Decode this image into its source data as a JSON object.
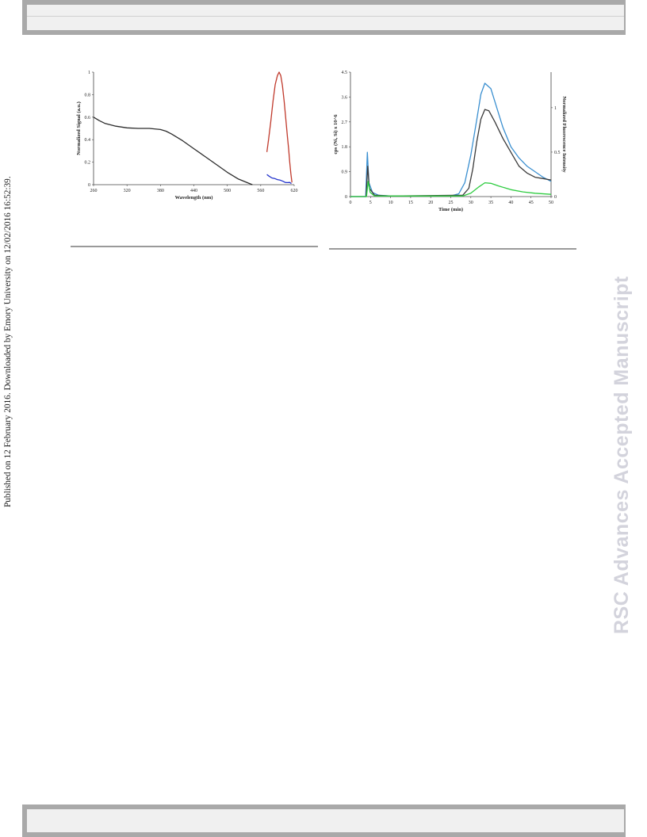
{
  "published_note": "Published on 12 February 2016. Downloaded by Emory University on 12/02/2016 16:52:39.",
  "watermark": "RSC Advances Accepted Manuscript",
  "chart_data": [
    {
      "type": "line",
      "title": "",
      "xlabel": "Wavelength (nm)",
      "ylabel": "Normalized Signal (a.u.)",
      "xlim": [
        260,
        620
      ],
      "ylim": [
        0,
        1
      ],
      "x_ticks": [
        "260",
        "320",
        "380",
        "440",
        "500",
        "560",
        "620"
      ],
      "y_ticks": [
        "0",
        "0.2",
        "0.4",
        "0.6",
        "0.8",
        "1"
      ],
      "grid": false,
      "legend": "none",
      "series": [
        {
          "color": "#2b2b2b",
          "points": [
            [
              260,
              0.6
            ],
            [
              270,
              0.57
            ],
            [
              280,
              0.545
            ],
            [
              300,
              0.52
            ],
            [
              320,
              0.505
            ],
            [
              340,
              0.5
            ],
            [
              360,
              0.5
            ],
            [
              380,
              0.49
            ],
            [
              390,
              0.475
            ],
            [
              400,
              0.45
            ],
            [
              420,
              0.39
            ],
            [
              440,
              0.32
            ],
            [
              460,
              0.25
            ],
            [
              480,
              0.18
            ],
            [
              500,
              0.11
            ],
            [
              520,
              0.05
            ],
            [
              540,
              0.01
            ],
            [
              545,
              0
            ]
          ]
        },
        {
          "color": "#c0392b",
          "points": [
            [
              571,
              0.29
            ],
            [
              574,
              0.4
            ],
            [
              578,
              0.56
            ],
            [
              582,
              0.74
            ],
            [
              586,
              0.89
            ],
            [
              590,
              0.97
            ],
            [
              593,
              1.0
            ],
            [
              596,
              0.97
            ],
            [
              599,
              0.88
            ],
            [
              602,
              0.74
            ],
            [
              605,
              0.58
            ],
            [
              608,
              0.42
            ],
            [
              610,
              0.32
            ],
            [
              612,
              0.2
            ],
            [
              614,
              0.1
            ],
            [
              616,
              0.02
            ]
          ]
        },
        {
          "color": "#2233cc",
          "points": [
            [
              571,
              0.09
            ],
            [
              575,
              0.075
            ],
            [
              580,
              0.06
            ],
            [
              585,
              0.055
            ],
            [
              590,
              0.045
            ],
            [
              595,
              0.04
            ],
            [
              600,
              0.03
            ],
            [
              604,
              0.02
            ],
            [
              608,
              0.018
            ],
            [
              612,
              0.02
            ],
            [
              615,
              0.01
            ]
          ]
        }
      ]
    },
    {
      "type": "line",
      "title": "",
      "xlabel": "Time (min)",
      "ylabel": "cps (Ni, Si) x 10^6",
      "y2label": "Normalized Fluorescence Intensity",
      "xlim": [
        0,
        50
      ],
      "ylim": [
        0,
        4.5
      ],
      "y2lim": [
        0,
        1.4
      ],
      "x_ticks": [
        "0",
        "5",
        "10",
        "15",
        "20",
        "25",
        "30",
        "35",
        "40",
        "45",
        "50"
      ],
      "y_ticks": [
        "0",
        "0.9",
        "1.8",
        "2.7",
        "3.6",
        "4.5"
      ],
      "y2_ticks": [
        "0",
        "0.5",
        "1"
      ],
      "grid": false,
      "legend": "none",
      "series": [
        {
          "color": "#3a8fd0",
          "points": [
            [
              0,
              0
            ],
            [
              3.8,
              0
            ],
            [
              4.2,
              1.6
            ],
            [
              4.6,
              0.5
            ],
            [
              5.5,
              0.15
            ],
            [
              7,
              0.05
            ],
            [
              10,
              0.02
            ],
            [
              25,
              0.02
            ],
            [
              27,
              0.1
            ],
            [
              28.5,
              0.5
            ],
            [
              30,
              1.5
            ],
            [
              31.5,
              2.8
            ],
            [
              32.5,
              3.7
            ],
            [
              33.5,
              4.1
            ],
            [
              35,
              3.9
            ],
            [
              36.5,
              3.2
            ],
            [
              38,
              2.5
            ],
            [
              40,
              1.8
            ],
            [
              42,
              1.4
            ],
            [
              44,
              1.1
            ],
            [
              46,
              0.9
            ],
            [
              48,
              0.7
            ],
            [
              50,
              0.55
            ]
          ]
        },
        {
          "color": "#3a3a3a",
          "points": [
            [
              0,
              0
            ],
            [
              3.9,
              0
            ],
            [
              4.3,
              1.1
            ],
            [
              4.7,
              0.3
            ],
            [
              6,
              0.05
            ],
            [
              10,
              0.02
            ],
            [
              28,
              0.05
            ],
            [
              29.5,
              0.3
            ],
            [
              30.5,
              1.0
            ],
            [
              31.5,
              2.0
            ],
            [
              32.5,
              2.8
            ],
            [
              33.5,
              3.15
            ],
            [
              34.5,
              3.1
            ],
            [
              36,
              2.7
            ],
            [
              38,
              2.1
            ],
            [
              40,
              1.6
            ],
            [
              42,
              1.1
            ],
            [
              44,
              0.85
            ],
            [
              46,
              0.7
            ],
            [
              48,
              0.65
            ],
            [
              50,
              0.6
            ]
          ]
        },
        {
          "color": "#2ecc40",
          "points": [
            [
              0,
              0
            ],
            [
              4,
              0
            ],
            [
              4.4,
              0.55
            ],
            [
              4.9,
              0.15
            ],
            [
              6,
              0.02
            ],
            [
              28,
              0.02
            ],
            [
              30,
              0.12
            ],
            [
              32,
              0.35
            ],
            [
              33.5,
              0.5
            ],
            [
              35,
              0.48
            ],
            [
              37,
              0.38
            ],
            [
              40,
              0.25
            ],
            [
              43,
              0.17
            ],
            [
              46,
              0.12
            ],
            [
              50,
              0.08
            ]
          ]
        }
      ]
    }
  ]
}
